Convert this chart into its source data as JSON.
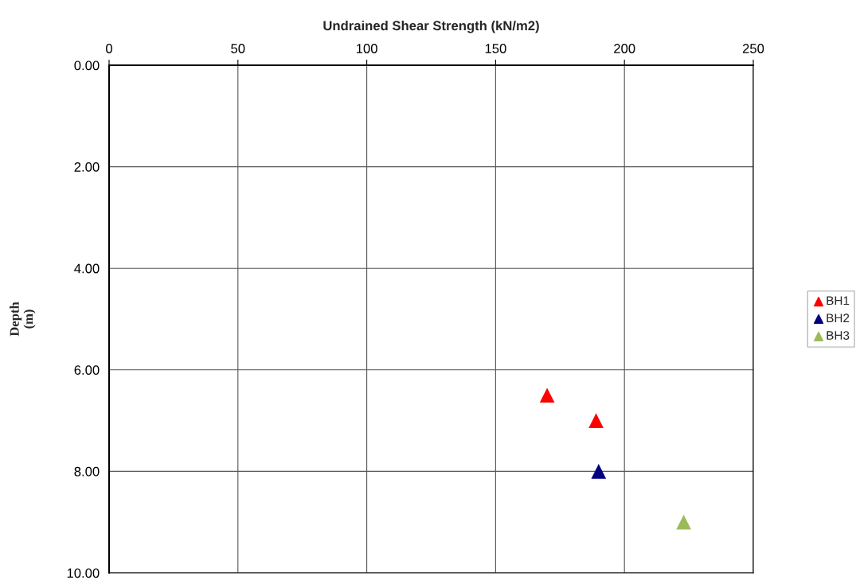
{
  "chart_data": {
    "type": "scatter",
    "xlabel": "Undrained Shear Strength (kN/m2)",
    "ylabel": "Depth\n(m)",
    "series": [
      {
        "name": "BH1",
        "color": "#ff0000",
        "x": [
          170,
          189
        ],
        "values": [
          6.5,
          7.0
        ]
      },
      {
        "name": "BH2",
        "color": "#000080",
        "x": [
          190
        ],
        "values": [
          8.0
        ]
      },
      {
        "name": "BH3",
        "color": "#9bbb59",
        "x": [
          223
        ],
        "values": [
          9.0
        ]
      }
    ],
    "xlim": [
      0,
      250
    ],
    "xticks": [
      0,
      50,
      100,
      150,
      200,
      250
    ],
    "ylim": [
      10,
      0
    ],
    "yticks": [
      {
        "value": 0,
        "label": "0.00"
      },
      {
        "value": 2,
        "label": "2.00"
      },
      {
        "value": 4,
        "label": "4.00"
      },
      {
        "value": 6,
        "label": "6.00"
      },
      {
        "value": 8,
        "label": "8.00"
      },
      {
        "value": 10,
        "label": "10.00"
      }
    ],
    "grid": true,
    "legend": "right",
    "marker": "triangle"
  }
}
